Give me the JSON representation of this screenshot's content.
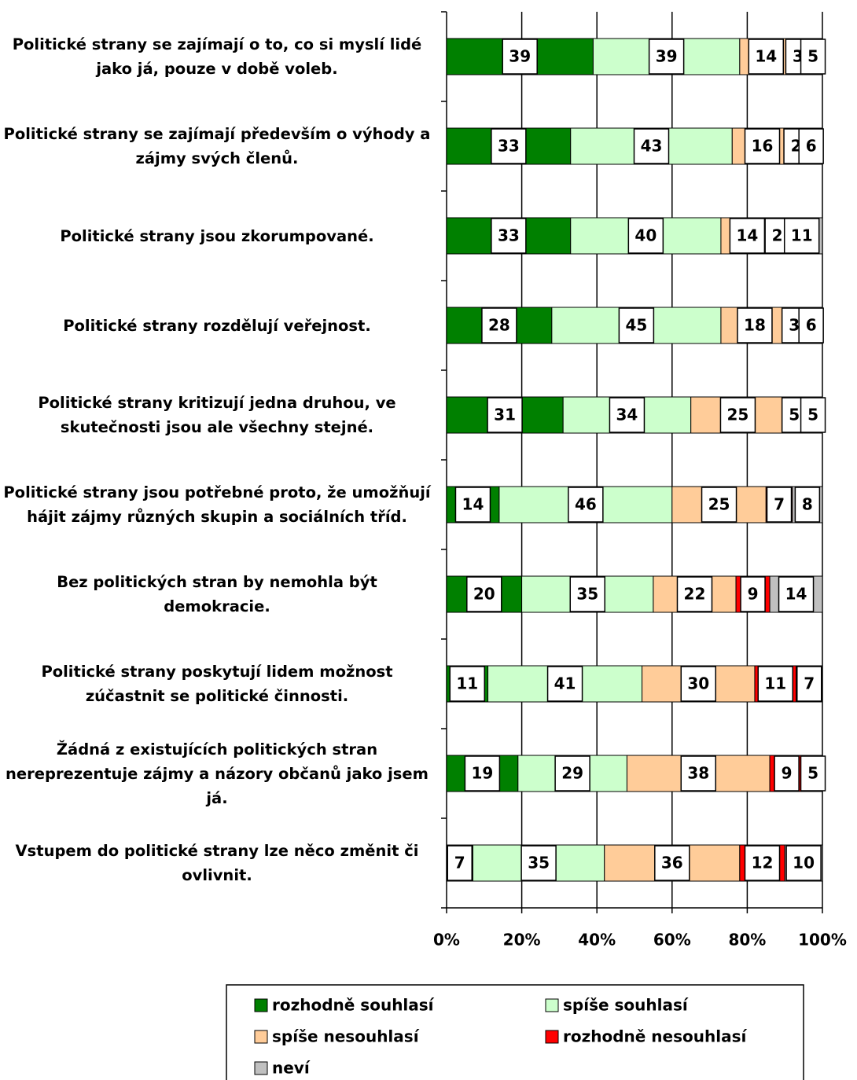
{
  "chart_data": {
    "type": "stacked-bar-horizontal",
    "categories": [
      "Politické strany se zajímají o to, co si myslí lidé jako já, pouze v době voleb.",
      "Politické strany se zajímají především o výhody a zájmy svých členů.",
      "Politické strany jsou zkorumpované.",
      "Politické strany rozdělují veřejnost.",
      "Politické strany kritizují jedna druhou, ve skutečnosti jsou ale všechny stejné.",
      "Politické strany jsou potřebné proto, že umožňují hájit zájmy různých skupin a sociálních tříd.",
      "Bez politických stran by nemohla být demokracie.",
      "Politické strany poskytují lidem možnost zúčastnit se politické činnosti.",
      "Žádná z existujících politických stran nereprezentuje zájmy a názory občanů jako jsem já.",
      "Vstupem do politické strany lze něco změnit či ovlivnit."
    ],
    "series": [
      {
        "name": "rozhodně souhlasí",
        "color": "#008000",
        "values": [
          39,
          33,
          33,
          28,
          31,
          14,
          20,
          11,
          19,
          7
        ]
      },
      {
        "name": "spíše souhlasí",
        "color": "#ccffcc",
        "values": [
          39,
          43,
          40,
          45,
          34,
          46,
          35,
          41,
          29,
          35
        ]
      },
      {
        "name": "spíše nesouhlasí",
        "color": "#ffcc99",
        "values": [
          14,
          16,
          14,
          18,
          25,
          25,
          22,
          30,
          38,
          36
        ]
      },
      {
        "name": "rozhodně nesouhlasí",
        "color": "#ff0000",
        "values": [
          3,
          2,
          2,
          3,
          5,
          7,
          9,
          11,
          9,
          12
        ]
      },
      {
        "name": "neví",
        "color": "#c0c0c0",
        "values": [
          5,
          6,
          11,
          6,
          5,
          8,
          14,
          7,
          5,
          10
        ]
      }
    ],
    "xlim": [
      0,
      100
    ],
    "xticks": [
      {
        "value": 0,
        "label": "0%"
      },
      {
        "value": 20,
        "label": "20%"
      },
      {
        "value": 40,
        "label": "40%"
      },
      {
        "value": 60,
        "label": "60%"
      },
      {
        "value": 80,
        "label": "80%"
      },
      {
        "value": 100,
        "label": "100%"
      }
    ],
    "grid": true,
    "legend": "bottom"
  }
}
